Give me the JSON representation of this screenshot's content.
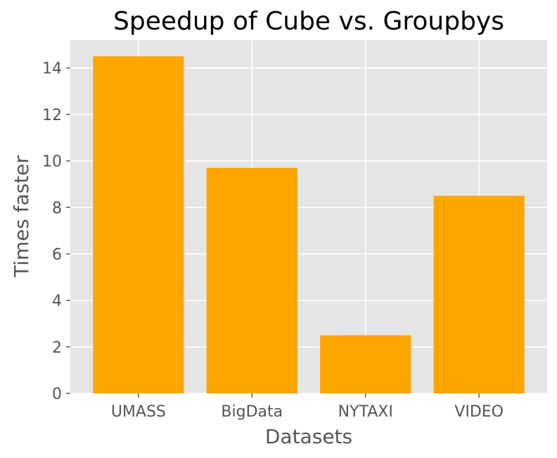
{
  "chart_data": {
    "type": "bar",
    "title": "Speedup of Cube vs. Groupbys",
    "xlabel": "Datasets",
    "ylabel": "Times faster",
    "categories": [
      "UMASS",
      "BigData",
      "NYTAXI",
      "VIDEO"
    ],
    "values": [
      14.5,
      9.7,
      2.5,
      8.5
    ],
    "ylim": [
      0,
      15.2
    ],
    "yticks": [
      0,
      2,
      4,
      6,
      8,
      10,
      12,
      14
    ],
    "ytick_labels": [
      "0",
      "2",
      "4",
      "6",
      "8",
      "10",
      "12",
      "14"
    ],
    "bar_color": "#FFA500",
    "background_color": "#E5E5E5",
    "grid": true,
    "grid_color": "#FFFFFF"
  }
}
